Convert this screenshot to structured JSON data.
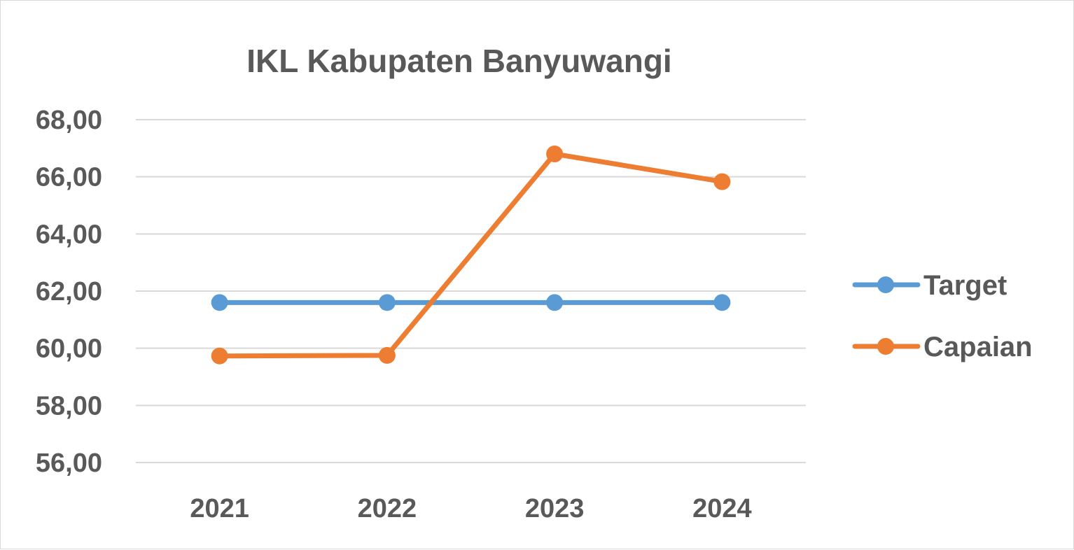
{
  "chart_data": {
    "type": "line",
    "title": "IKL Kabupaten Banyuwangi",
    "xlabel": "",
    "ylabel": "",
    "categories": [
      "2021",
      "2022",
      "2023",
      "2024"
    ],
    "series": [
      {
        "name": "Target",
        "values": [
          61.6,
          61.6,
          61.6,
          61.6
        ],
        "color": "#5b9bd5"
      },
      {
        "name": "Capaian",
        "values": [
          59.73,
          59.75,
          66.8,
          65.83
        ],
        "color": "#ed7d31"
      }
    ],
    "ylim": [
      56,
      68
    ],
    "yticks": [
      "68,00",
      "66,00",
      "64,00",
      "62,00",
      "60,00",
      "58,00",
      "56,00"
    ],
    "ytick_values": [
      68,
      66,
      64,
      62,
      60,
      58,
      56
    ],
    "grid": true,
    "legend_position": "right",
    "gridline_color": "#d9d9d9"
  }
}
